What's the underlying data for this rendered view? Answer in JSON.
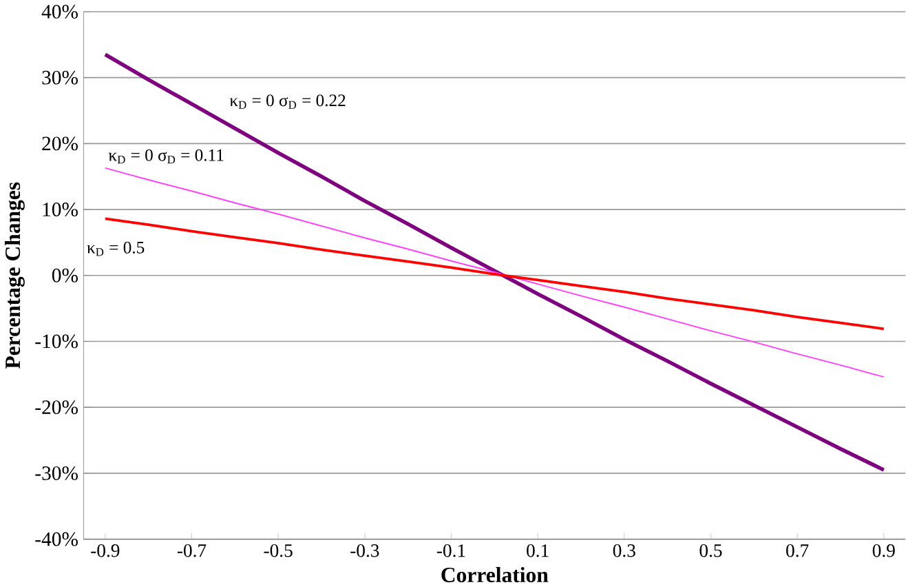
{
  "chart_data": {
    "type": "line",
    "xlabel": "Correlation",
    "ylabel": "Percentage Changes",
    "x": [
      -0.9,
      -0.8,
      -0.7,
      -0.6,
      -0.5,
      -0.4,
      -0.3,
      -0.2,
      -0.1,
      0,
      0.1,
      0.2,
      0.3,
      0.4,
      0.5,
      0.6,
      0.7,
      0.8,
      0.9
    ],
    "series": [
      {
        "name": "κ$_{D}$ = 0  σ$_{D}$ = 0.22",
        "color": "#7f007f",
        "values": [
          33.5,
          29.7,
          26.0,
          22.3,
          18.6,
          15.0,
          11.3,
          7.8,
          4.2,
          0.7,
          -2.8,
          -6.2,
          -9.7,
          -13.0,
          -16.4,
          -19.7,
          -23.0,
          -26.3,
          -29.5
        ]
      },
      {
        "name": "κ$_{D}$ = 0 σ$_{D}$ = 0.11",
        "color": "#ff40ff",
        "values": [
          16.3,
          14.5,
          12.8,
          11.0,
          9.3,
          7.5,
          5.7,
          4.0,
          2.2,
          0.5,
          -1.3,
          -3.1,
          -4.8,
          -6.6,
          -8.4,
          -10.1,
          -11.9,
          -13.6,
          -15.4
        ]
      },
      {
        "name": "κ$_{D}$ = 0.5",
        "color": "#ff0000",
        "values": [
          8.6,
          7.7,
          6.7,
          5.8,
          4.9,
          3.9,
          3.0,
          2.1,
          1.2,
          0.2,
          -0.7,
          -1.6,
          -2.5,
          -3.5,
          -4.4,
          -5.3,
          -6.3,
          -7.2,
          -8.1
        ]
      }
    ],
    "xlim": [
      -0.95,
      0.95
    ],
    "xticks": [
      -0.9,
      -0.7,
      -0.5,
      -0.3,
      -0.1,
      0.1,
      0.3,
      0.5,
      0.7,
      0.9
    ],
    "ylim": [
      -40,
      40
    ],
    "yticks": [
      {
        "value": -40,
        "label": "-40%"
      },
      {
        "value": -30,
        "label": "-30%"
      },
      {
        "value": -20,
        "label": "-20%"
      },
      {
        "value": -10,
        "label": "-10%"
      },
      {
        "value": 0,
        "label": "0%"
      },
      {
        "value": 10,
        "label": "10%"
      },
      {
        "value": 20,
        "label": "20%"
      },
      {
        "value": 30,
        "label": "30%"
      },
      {
        "value": 40,
        "label": "40%"
      }
    ],
    "grid": "y",
    "legend": false,
    "marker": "none",
    "line_style": "solid"
  }
}
